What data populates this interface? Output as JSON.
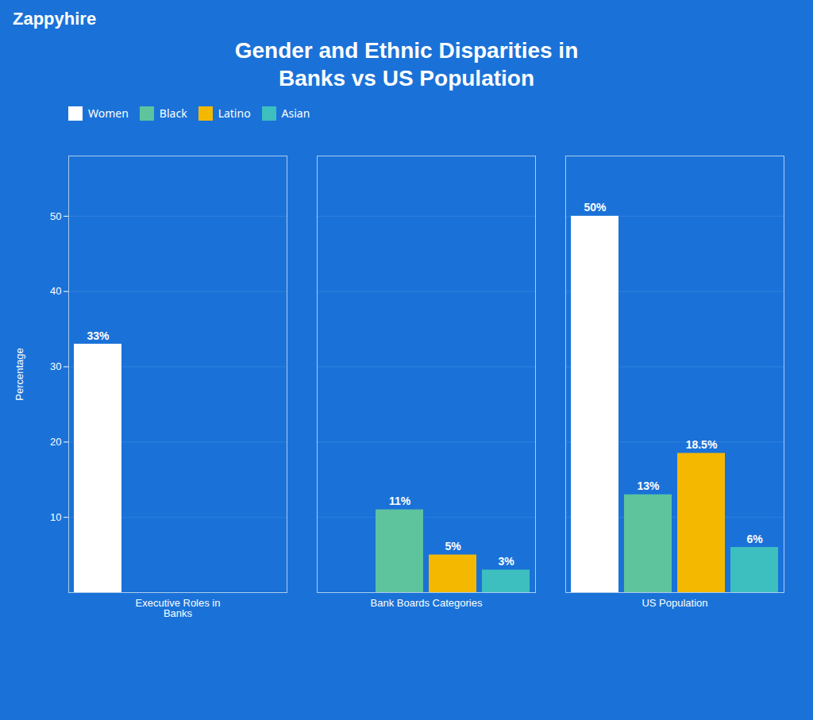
{
  "chart_data": {
    "type": "bar",
    "title": "Gender and Ethnic Disparities in\nBanks vs US Population",
    "annotations": [
      {
        "text": "Zappyhire"
      }
    ],
    "categories": [
      "Executive Roles in\nBanks",
      "Bank Boards Categories",
      "US Population"
    ],
    "series": [
      {
        "name": "Women",
        "color": "#ffffff",
        "values": [
          33,
          null,
          50
        ],
        "value_labels": [
          "33%",
          null,
          "50%"
        ]
      },
      {
        "name": "Black",
        "color": "#5dc49e",
        "values": [
          null,
          11,
          13
        ],
        "value_labels": [
          null,
          "11%",
          "13%"
        ]
      },
      {
        "name": "Latino",
        "color": "#f5b800",
        "values": [
          null,
          5,
          18.5
        ],
        "value_labels": [
          null,
          "5%",
          "18.5%"
        ]
      },
      {
        "name": "Asian",
        "color": "#3dbfbf",
        "values": [
          null,
          3,
          6
        ],
        "value_labels": [
          null,
          "3%",
          "6%"
        ]
      }
    ],
    "ylabel": "Percentage",
    "ylim": [
      0,
      58
    ],
    "yticks": [
      10,
      20,
      30,
      40,
      50
    ],
    "grid": true,
    "data_labels": true,
    "legend": "top"
  }
}
